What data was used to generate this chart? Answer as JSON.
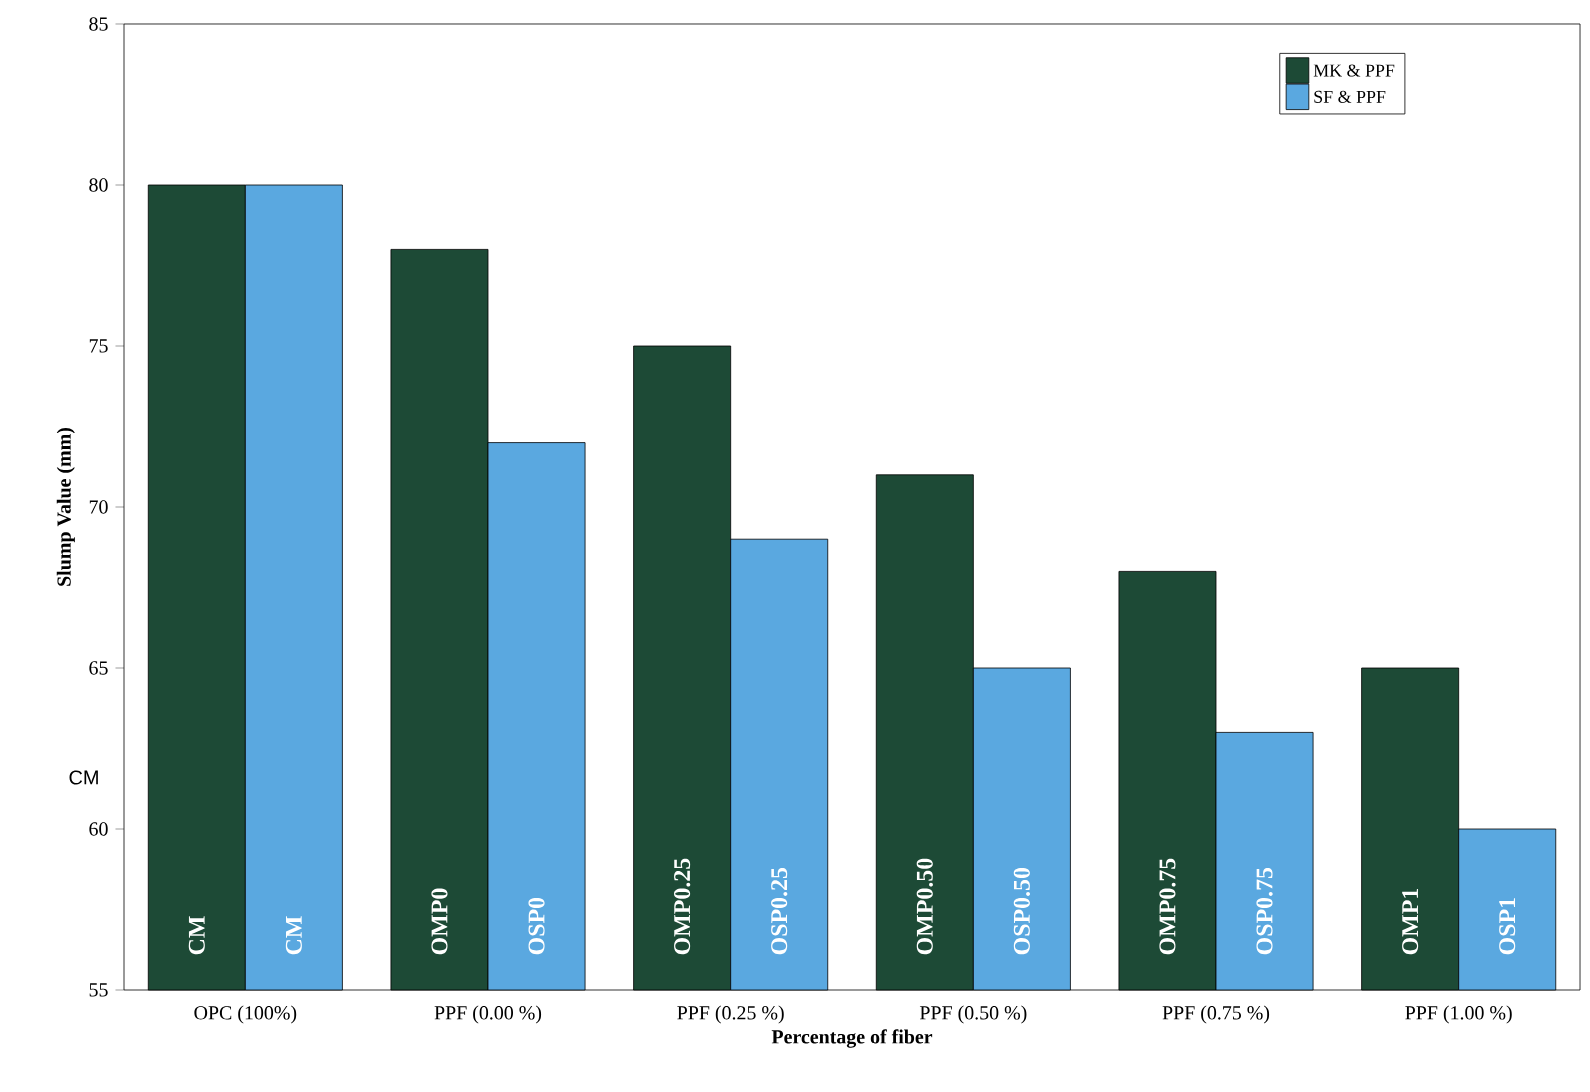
{
  "chart_data": {
    "type": "bar",
    "xlabel": "Percentage of fiber",
    "ylabel": "Slump Value (mm)",
    "categories": [
      "OPC (100%)",
      "PPF (0.00 %)",
      "PPF (0.25 %)",
      "PPF (0.50 %)",
      "PPF (0.75 %)",
      "PPF (1.00 %)"
    ],
    "series": [
      {
        "name": "MK & PPF",
        "color": "#1d4a36",
        "values": [
          80,
          78,
          75,
          71,
          68,
          65
        ]
      },
      {
        "name": "SF & PPF",
        "color": "#5aa8e0",
        "values": [
          80,
          72,
          69,
          65,
          63,
          60
        ]
      }
    ],
    "ylim": [
      55,
      85
    ],
    "yticks": [
      55,
      60,
      65,
      70,
      75,
      80,
      85
    ],
    "legend": "top right",
    "grid": false,
    "annotations": [
      "CM",
      {
        "text": "CM",
        "x": "OPC (100%)",
        "y": 56
      },
      {
        "text": "CM",
        "x": "OPC (100%)",
        "y": 56
      },
      {
        "text": "OMP0",
        "x": "PPF (0.00 %)",
        "y": 56
      },
      {
        "text": "OSP0",
        "x": "PPF (0.00 %)",
        "y": 56
      },
      {
        "text": "OMP0.25",
        "x": "PPF (0.25 %)",
        "y": 56
      },
      {
        "text": "OSP0.25",
        "x": "PPF (0.25 %)",
        "y": 56
      },
      {
        "text": "OMP0.50",
        "x": "PPF (0.50 %)",
        "y": 56
      },
      {
        "text": "OSP0.50",
        "x": "PPF (0.50 %)",
        "y": 56
      },
      {
        "text": "OMP0.75",
        "x": "PPF (0.75 %)",
        "y": 56
      },
      {
        "text": "OSP0.75",
        "x": "PPF (0.75 %)",
        "y": 56
      },
      {
        "text": "OMP1",
        "x": "PPF (1.00 %)",
        "y": 56
      },
      {
        "text": "OSP1",
        "x": "PPF (1.00 %)",
        "y": 56
      }
    ]
  }
}
